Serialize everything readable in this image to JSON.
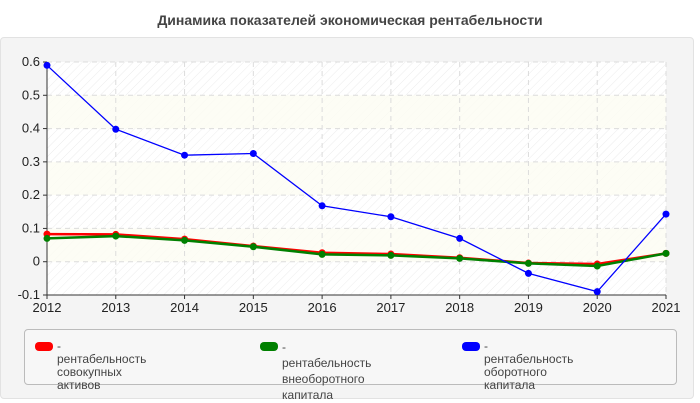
{
  "title": "Динамика показателей экономическая рентабельности",
  "legend": {
    "items": [
      {
        "label": "- рентабельность совокупных\nактивов",
        "color": "#ff0000"
      },
      {
        "label": "- рентабельность\nвнеоборотного капитала",
        "color": "#008000"
      },
      {
        "label": "- рентабельность оборотного\nкапитала",
        "color": "#0000ff"
      }
    ]
  },
  "chart_data": {
    "type": "line",
    "title": "Динамика показателей экономическая рентабельности",
    "xlabel": "",
    "ylabel": "",
    "x": [
      "2012",
      "2013",
      "2014",
      "2015",
      "2016",
      "2017",
      "2018",
      "2019",
      "2020",
      "2021"
    ],
    "ylim": [
      -0.1,
      0.6
    ],
    "yticks": [
      -0.1,
      0,
      0.1,
      0.2,
      0.3,
      0.4,
      0.5,
      0.6
    ],
    "ytick_labels": [
      "-0.1",
      "0",
      "0.1",
      "0.2",
      "0.3",
      "0.4",
      "0.5",
      "0.6"
    ],
    "grid": true,
    "legend_position": "bottom",
    "series": [
      {
        "name": "рентабельность совокупных активов",
        "color": "#ff0000",
        "values": [
          0.083,
          0.082,
          0.068,
          0.047,
          0.027,
          0.023,
          0.012,
          -0.004,
          -0.007,
          0.025
        ]
      },
      {
        "name": "рентабельность внеоборотного капитала",
        "color": "#008000",
        "values": [
          0.07,
          0.077,
          0.064,
          0.045,
          0.022,
          0.019,
          0.01,
          -0.005,
          -0.013,
          0.025
        ]
      },
      {
        "name": "рентабельность оборотного капитала",
        "color": "#0000ff",
        "values": [
          0.59,
          0.398,
          0.32,
          0.325,
          0.168,
          0.135,
          0.07,
          -0.035,
          -0.09,
          0.143
        ]
      }
    ]
  }
}
